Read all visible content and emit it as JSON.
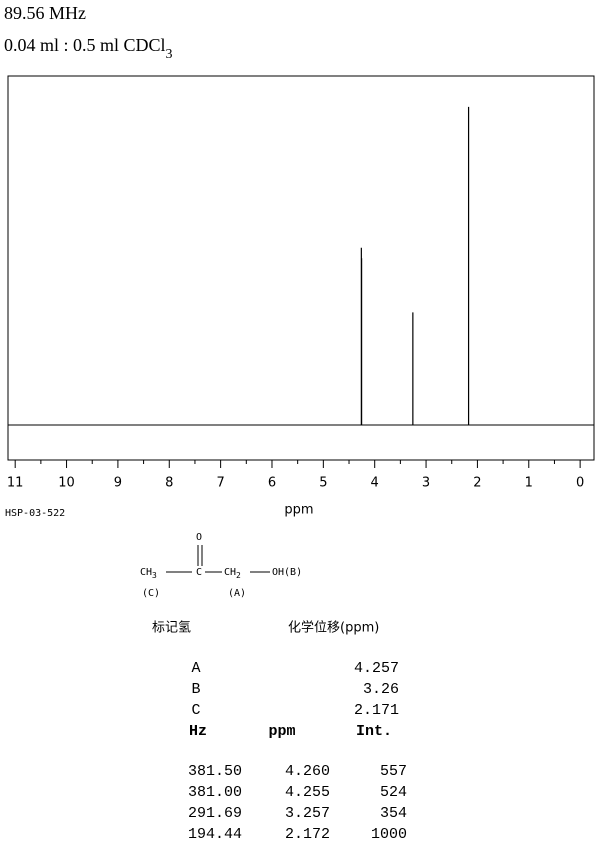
{
  "header": {
    "frequency": "89.56 MHz",
    "sample": "0.04 ml : 0.5 ml CDCl",
    "sample_subscript": "3"
  },
  "chart_data": {
    "type": "spectrum",
    "x_label": "ppm",
    "x": [
      4.26,
      4.255,
      3.257,
      2.172
    ],
    "x_labels": [
      "4.260",
      "4.255",
      "3.257",
      "2.172"
    ],
    "hz": [
      381.5,
      381.0,
      291.69,
      194.44
    ],
    "hz_labels": [
      "381.50",
      "381.00",
      "291.69",
      "194.44"
    ],
    "values": [
      557,
      524,
      354,
      1000
    ],
    "xlim": [
      11.14,
      -0.27
    ],
    "xticks": [
      11,
      10,
      9,
      8,
      7,
      6,
      5,
      4,
      3,
      2,
      1,
      0
    ],
    "ylim": [
      -110,
      1097
    ],
    "color": "#000000"
  },
  "code": "HSP-03-522",
  "structure": {
    "o": "O",
    "ch3": "CH",
    "ch3_sub": "3",
    "c": "C",
    "ch2": "CH",
    "ch2_sub": "2",
    "oh": "OH(B)",
    "label_c": "(C)",
    "label_a": "(A)"
  },
  "assignment_table": {
    "headers": [
      "标记氢",
      "化学位移(ppm)"
    ],
    "rows": [
      [
        "A",
        "4.257"
      ],
      [
        "B",
        "3.26"
      ],
      [
        "C",
        "2.171"
      ]
    ]
  },
  "peak_table": {
    "headers": [
      "Hz",
      "ppm",
      "Int."
    ]
  }
}
